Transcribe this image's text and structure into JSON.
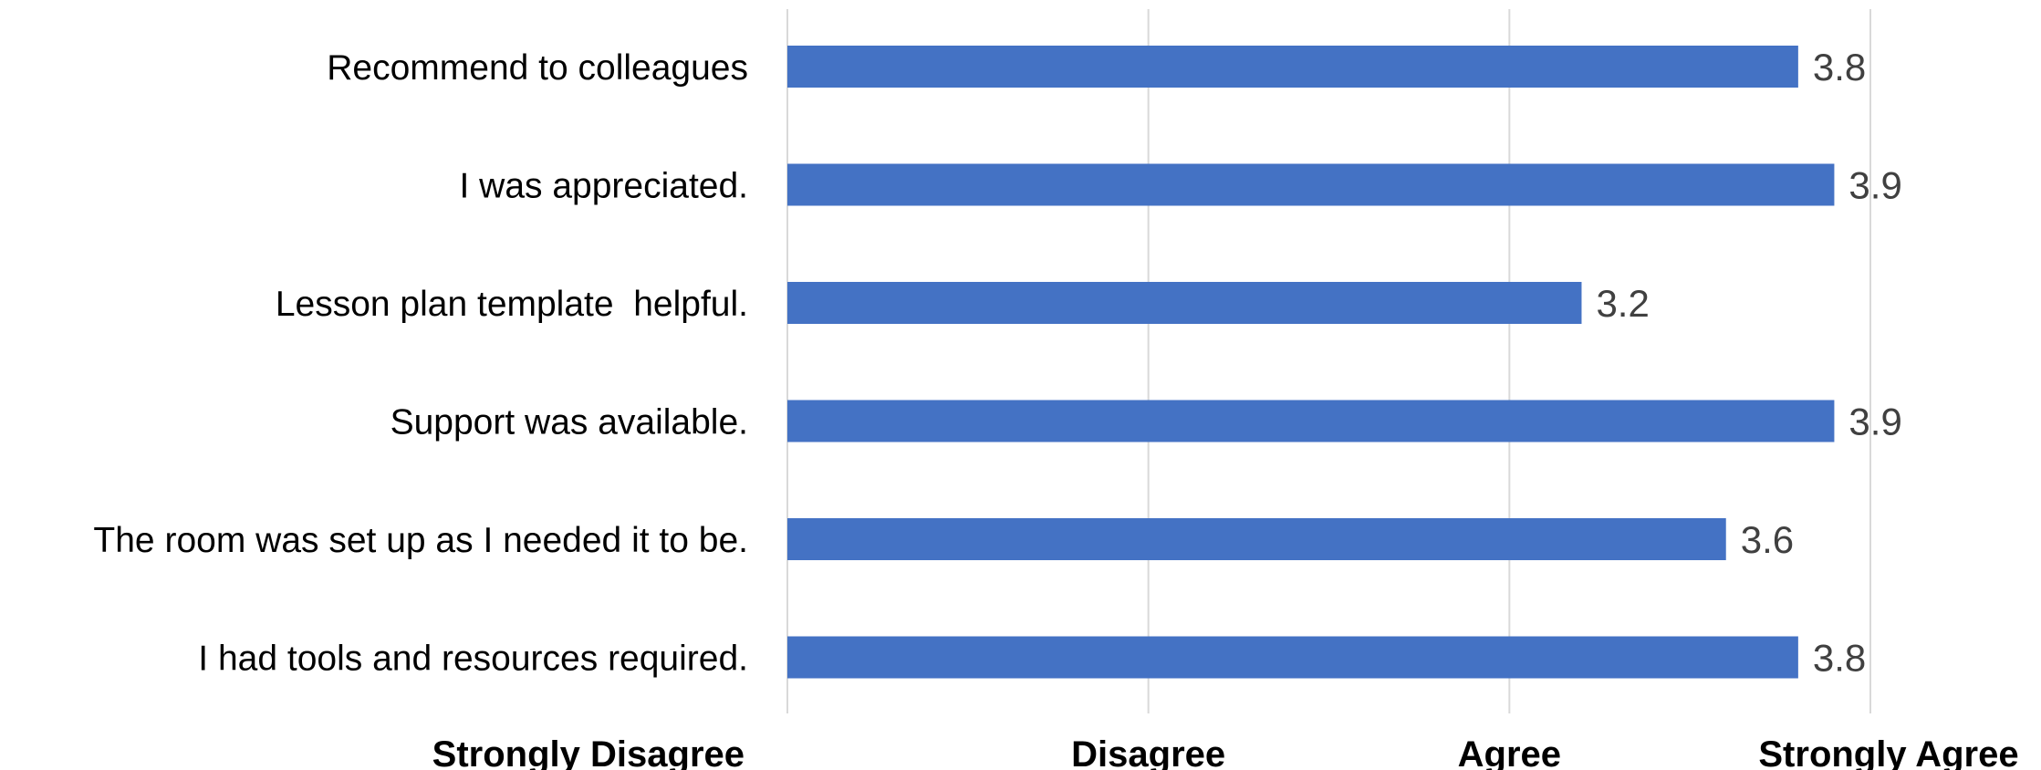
{
  "chart_data": {
    "type": "bar",
    "orientation": "horizontal",
    "categories": [
      "Recommend to colleagues",
      "I was appreciated.",
      "Lesson plan template  helpful.",
      "Support was available.",
      "The room was set up as I needed it to be.",
      "I had tools and resources required."
    ],
    "values": [
      3.8,
      3.9,
      3.2,
      3.9,
      3.6,
      3.8
    ],
    "data_labels": [
      "3.8",
      "3.9",
      "3.2",
      "3.9",
      "3.6",
      "3.8"
    ],
    "xlim": [
      1,
      4
    ],
    "xticks": [
      1,
      2,
      3,
      4
    ],
    "xtick_labels": [
      "Strongly Disagree",
      "Disagree",
      "Agree",
      "Strongly Agree"
    ],
    "grid": true,
    "legend": "none",
    "title": "",
    "xlabel": "",
    "ylabel": "",
    "colors": {
      "bar": "#4472c4",
      "gridline": "#d9d9d9",
      "data_label": "#404040",
      "text": "#000000"
    }
  }
}
